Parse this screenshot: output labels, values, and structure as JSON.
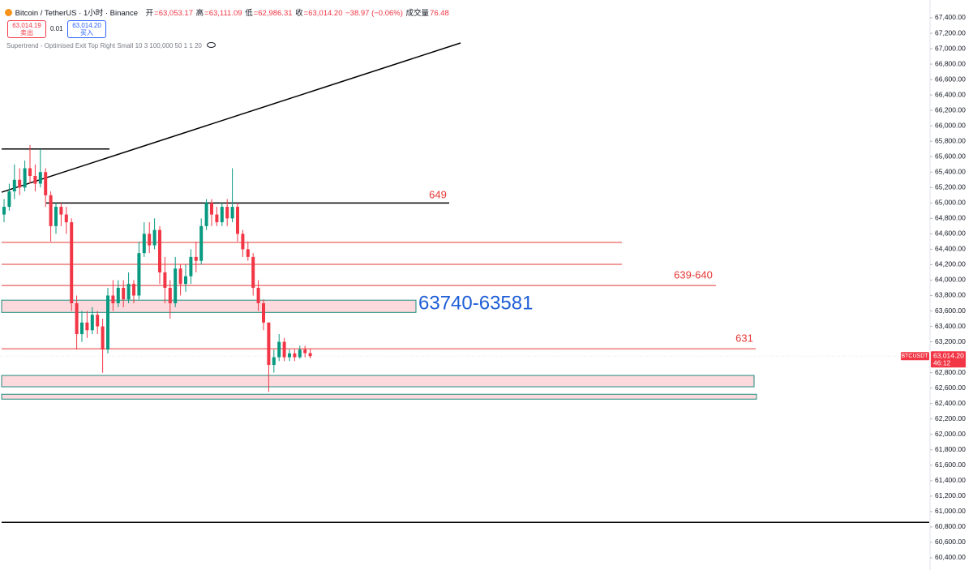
{
  "header": {
    "title": "Bitcoin / TetherUS · 1小时 · Binance",
    "open_label": "开",
    "open": "=63,053.17",
    "high_label": "高",
    "high": "=63,111.09",
    "low_label": "低",
    "low": "=62,986.31",
    "close_label": "收",
    "close": "=63,014.20",
    "change": "−38.97 (−0.06%)",
    "volume_label": "成交量",
    "volume": "76.48",
    "sell_price": "63,014.19",
    "sell_label": "卖出",
    "spread": "0.01",
    "buy_price": "63,014.20",
    "buy_label": "买入",
    "indicator": "Supertrend - Optimised Exit Top Right Small 10 3 100,000 50 1 1 20"
  },
  "chart_data": {
    "type": "candlestick",
    "up_color": "#089981",
    "down_color": "#f23645",
    "open": [
      64850,
      64950,
      65150,
      65300,
      65200,
      65450,
      65350,
      65250,
      65400,
      65100,
      64700,
      64950,
      64850,
      64750,
      63700,
      63300,
      63450,
      63350,
      63550,
      63400,
      63100,
      63800,
      63700,
      63900,
      63750,
      63950,
      63800,
      64350,
      64600,
      64450,
      64650,
      64100,
      63900,
      63700,
      64150,
      63950,
      64050,
      64300,
      64250,
      64700,
      65000,
      64850,
      64750,
      64950,
      64800,
      64950,
      64600,
      64400,
      64300,
      63900,
      63700,
      63450,
      62900,
      63000,
      63200,
      63000,
      63050,
      63000,
      63100,
      63053.17
    ],
    "high": [
      65050,
      65250,
      65500,
      65450,
      65550,
      65750,
      65500,
      65700,
      65450,
      65150,
      65000,
      65000,
      64950,
      64800,
      63800,
      63600,
      63600,
      63650,
      63600,
      63500,
      63900,
      64000,
      64000,
      64000,
      64100,
      64000,
      64500,
      64750,
      64750,
      64800,
      64700,
      64300,
      64000,
      64300,
      64200,
      64200,
      64400,
      64500,
      64800,
      65050,
      65050,
      64950,
      65000,
      65050,
      65450,
      65000,
      64650,
      64500,
      64350,
      64000,
      63750,
      63450,
      63100,
      63300,
      63250,
      63100,
      63100,
      63150,
      63150,
      63111.09
    ],
    "low": [
      64750,
      64900,
      65050,
      65100,
      65150,
      65250,
      65150,
      65200,
      64950,
      64500,
      64600,
      64700,
      64600,
      63600,
      63100,
      63200,
      63250,
      63300,
      63300,
      62800,
      63050,
      63600,
      63650,
      63650,
      63700,
      63700,
      63750,
      64300,
      64350,
      64400,
      63950,
      63700,
      63500,
      63650,
      63800,
      63850,
      63950,
      64100,
      64200,
      64650,
      64700,
      64700,
      64700,
      64700,
      64750,
      64500,
      64300,
      64250,
      63800,
      63600,
      63350,
      62550,
      62800,
      62950,
      62950,
      62950,
      62950,
      62980,
      63000,
      62986.31
    ],
    "close": [
      64950,
      65150,
      65300,
      65200,
      65450,
      65350,
      65250,
      65400,
      65100,
      64700,
      64950,
      64850,
      64750,
      63700,
      63300,
      63450,
      63350,
      63550,
      63400,
      63100,
      63800,
      63700,
      63900,
      63750,
      63950,
      63800,
      64350,
      64600,
      64450,
      64650,
      64100,
      63900,
      63700,
      64150,
      63950,
      64050,
      64300,
      64250,
      64700,
      65000,
      64850,
      64750,
      64950,
      64800,
      64950,
      64600,
      64400,
      64300,
      63900,
      63700,
      63450,
      62900,
      63000,
      63200,
      63000,
      63050,
      63000,
      63100,
      63053.17,
      63014.2
    ],
    "ylim": [
      60242,
      67631
    ],
    "yticks": [
      {
        "value": 67400,
        "label": "67,400.00"
      },
      {
        "value": 67200,
        "label": "67,200.00"
      },
      {
        "value": 67000,
        "label": "67,000.00"
      },
      {
        "value": 66800,
        "label": "66,800.00"
      },
      {
        "value": 66600,
        "label": "66,600.00"
      },
      {
        "value": 66400,
        "label": "66,400.00"
      },
      {
        "value": 66200,
        "label": "66,200.00"
      },
      {
        "value": 66000,
        "label": "66,000.00"
      },
      {
        "value": 65800,
        "label": "65,800.00"
      },
      {
        "value": 65600,
        "label": "65,600.00"
      },
      {
        "value": 65400,
        "label": "65,400.00"
      },
      {
        "value": 65200,
        "label": "65,200.00"
      },
      {
        "value": 65000,
        "label": "65,000.00"
      },
      {
        "value": 64800,
        "label": "64,800.00"
      },
      {
        "value": 64600,
        "label": "64,600.00"
      },
      {
        "value": 64400,
        "label": "64,400.00"
      },
      {
        "value": 64200,
        "label": "64,200.00"
      },
      {
        "value": 64000,
        "label": "64,000.00"
      },
      {
        "value": 63800,
        "label": "63,800.00"
      },
      {
        "value": 63600,
        "label": "63,600.00"
      },
      {
        "value": 63400,
        "label": "63,400.00"
      },
      {
        "value": 63200,
        "label": "63,200.00"
      },
      {
        "value": 62800,
        "label": "62,800.00"
      },
      {
        "value": 62600,
        "label": "62,600.00"
      },
      {
        "value": 62400,
        "label": "62,400.00"
      },
      {
        "value": 62200,
        "label": "62,200.00"
      },
      {
        "value": 62000,
        "label": "62,000.00"
      },
      {
        "value": 61800,
        "label": "61,800.00"
      },
      {
        "value": 61600,
        "label": "61,600.00"
      },
      {
        "value": 61400,
        "label": "61,400.00"
      },
      {
        "value": 61200,
        "label": "61,200.00"
      },
      {
        "value": 61000,
        "label": "61,000.00"
      },
      {
        "value": 60800,
        "label": "60,800.00"
      },
      {
        "value": 60600,
        "label": "60,600.00"
      },
      {
        "value": 60400,
        "label": "60,400.00"
      }
    ],
    "price_tag": {
      "symbol": "BTCUSDT",
      "price": "63,014.20",
      "countdown": "46:12"
    },
    "trendline": {
      "from": 65139,
      "to": 67074,
      "color": "#000000"
    },
    "lines": [
      {
        "price": 65700,
        "color": "#000000"
      },
      {
        "price": 65000,
        "color": "#000000"
      },
      {
        "price": 64488,
        "color": "#e53935"
      },
      {
        "price": 64204,
        "color": "#e53935"
      },
      {
        "price": 63930,
        "color": "#e53935"
      },
      {
        "price": 63110,
        "color": "#e53935"
      },
      {
        "price": 60860,
        "color": "#000000"
      }
    ],
    "zones": [
      {
        "top": 63740,
        "bottom": 63581
      },
      {
        "top": 62764,
        "bottom": 62617
      },
      {
        "top": 62520,
        "bottom": 62457
      }
    ],
    "zone_fill": "#fbd9dc",
    "zone_border": "#1e8c7e",
    "annotations": [
      {
        "text": "649",
        "color": "#e53935"
      },
      {
        "text": "639-640",
        "color": "#e53935"
      },
      {
        "text": "63740-63581",
        "color": "#1f5fd6"
      },
      {
        "text": "631",
        "color": "#e53935"
      }
    ]
  }
}
